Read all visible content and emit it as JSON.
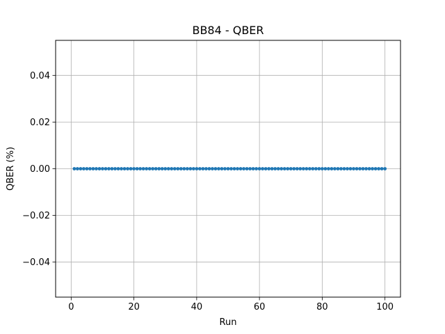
{
  "chart_data": {
    "type": "line",
    "title": "BB84 - QBER",
    "xlabel": "Run",
    "ylabel": "QBER (%)",
    "xlim": [
      -4.95,
      104.95
    ],
    "ylim": [
      -0.055,
      0.055
    ],
    "x_ticks": [
      0,
      20,
      40,
      60,
      80,
      100
    ],
    "x_tick_labels": [
      "0",
      "20",
      "40",
      "60",
      "80",
      "100"
    ],
    "y_ticks": [
      -0.04,
      -0.02,
      0.0,
      0.02,
      0.04
    ],
    "y_tick_labels": [
      "−0.04",
      "−0.02",
      "0.00",
      "0.02",
      "0.04"
    ],
    "grid": true,
    "legend": false,
    "marker": "circle",
    "series_color": "#1f77b4",
    "x_start": 1,
    "x_end": 100,
    "constant_y": 0.0
  }
}
